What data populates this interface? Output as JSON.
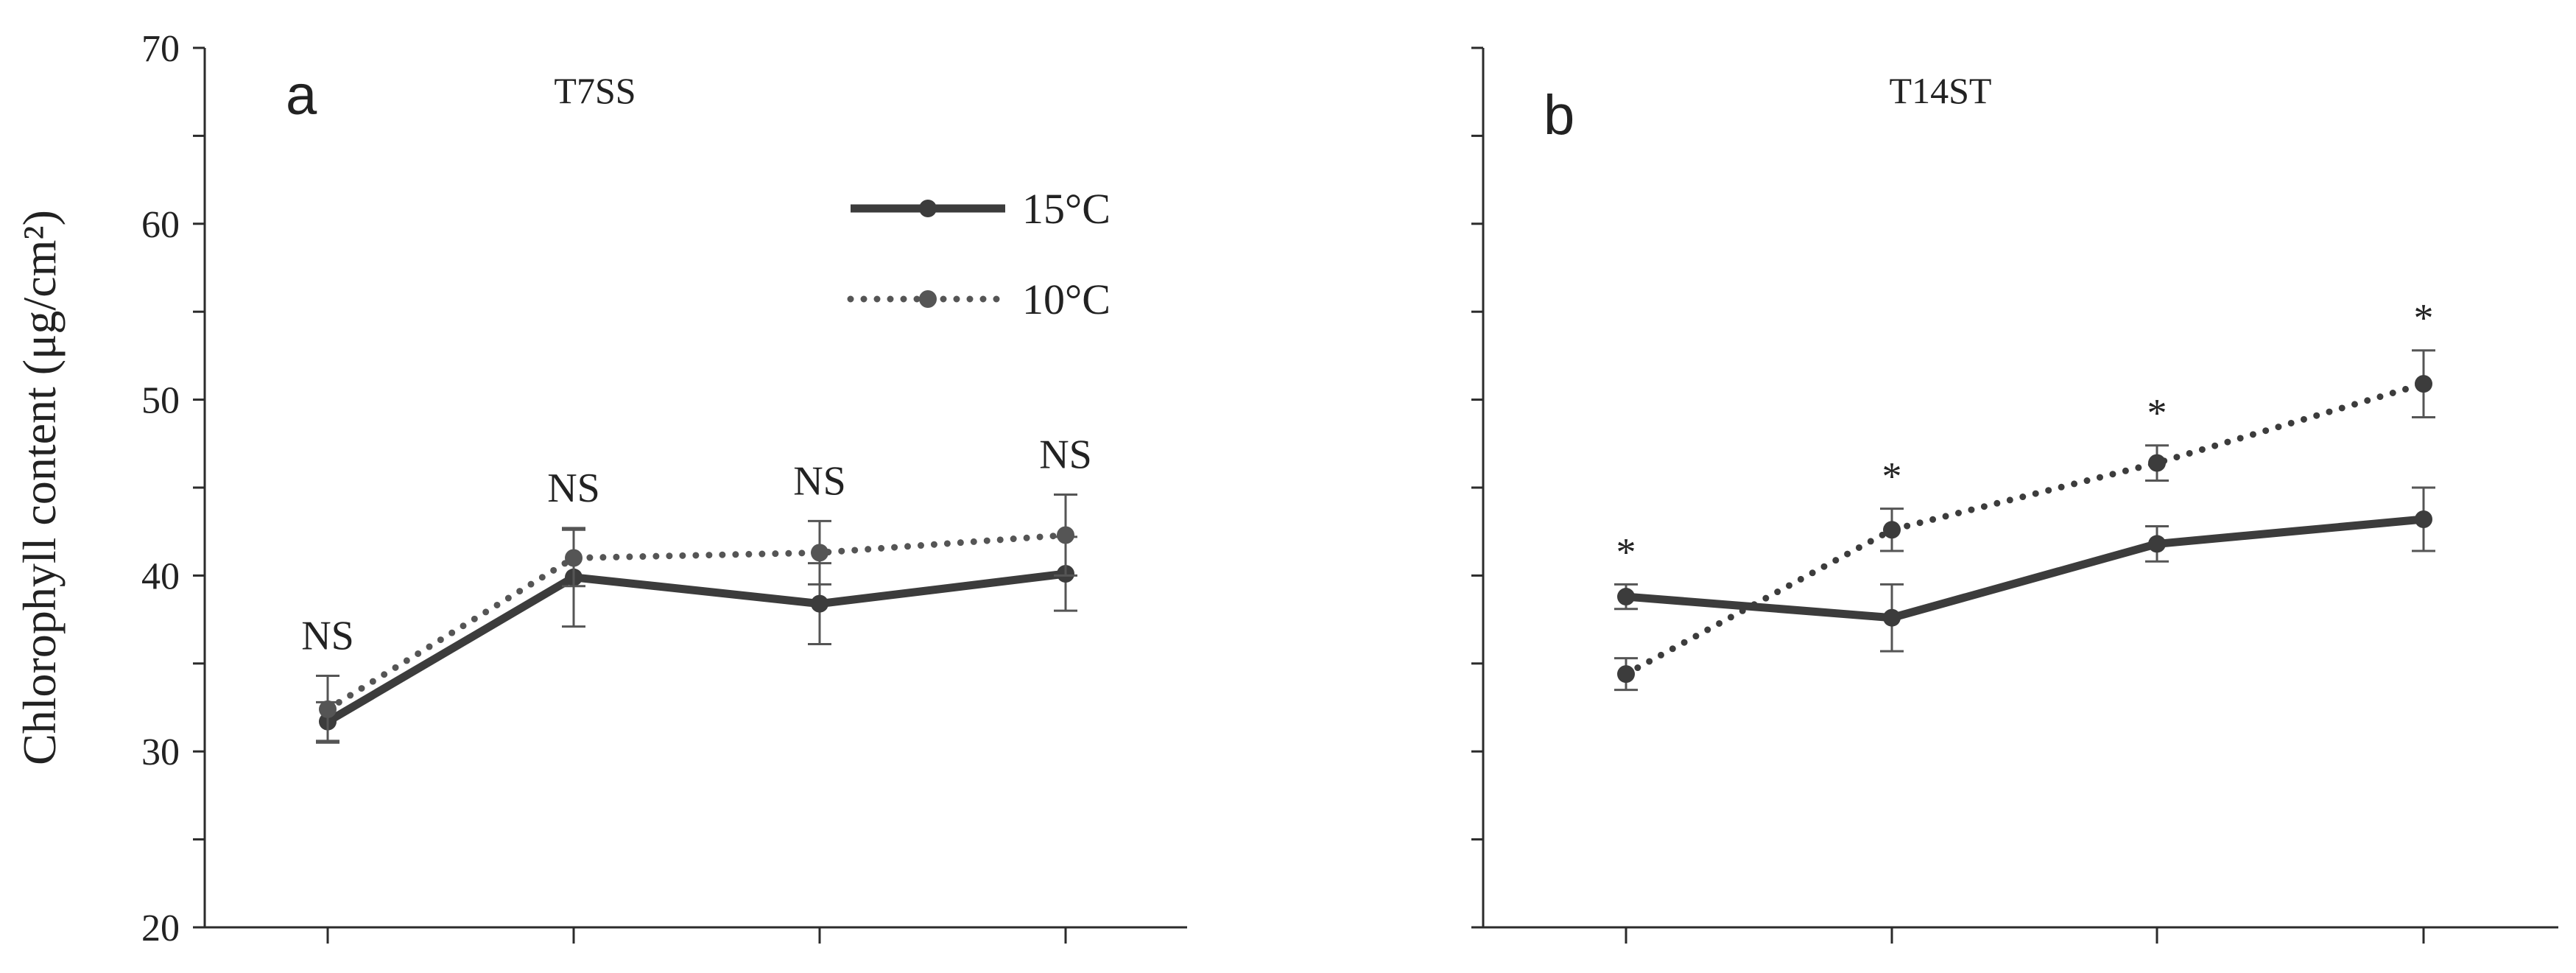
{
  "chart_data": [
    {
      "type": "line",
      "panel_letter": "a",
      "title": "T7SS",
      "ylabel": "Chlorophyll content (μg/cm²)",
      "ylim": [
        20,
        70
      ],
      "yticks": [
        20,
        30,
        40,
        50,
        60,
        70
      ],
      "x": [
        1,
        2,
        3,
        4
      ],
      "legend_placement": "top-center",
      "series": [
        {
          "name": "15°C",
          "style": "solid",
          "color": "#3c3c3c",
          "values": [
            31.7,
            39.9,
            38.4,
            40.1
          ],
          "errors": [
            1.1,
            2.8,
            2.3,
            2.1
          ]
        },
        {
          "name": "10°C",
          "style": "dotted",
          "color": "#555555",
          "values": [
            32.4,
            41.0,
            41.3,
            42.3
          ],
          "errors": [
            1.9,
            1.6,
            1.8,
            2.3
          ]
        }
      ],
      "annotations": [
        "NS",
        "NS",
        "NS",
        "NS"
      ]
    },
    {
      "type": "line",
      "panel_letter": "b",
      "title": "T14ST",
      "ylim": [
        20,
        70
      ],
      "x": [
        1,
        2,
        3,
        4
      ],
      "series": [
        {
          "name": "15°C",
          "style": "solid",
          "color": "#3c3c3c",
          "values": [
            38.8,
            37.6,
            41.8,
            43.2
          ],
          "errors": [
            0.7,
            1.9,
            1.0,
            1.8
          ]
        },
        {
          "name": "10°C",
          "style": "dotted",
          "color": "#3c3c3c",
          "values": [
            34.4,
            42.6,
            46.4,
            50.9
          ],
          "errors": [
            0.9,
            1.2,
            1.0,
            1.9
          ]
        }
      ],
      "annotations": [
        "*",
        "*",
        "*",
        "*"
      ]
    }
  ]
}
